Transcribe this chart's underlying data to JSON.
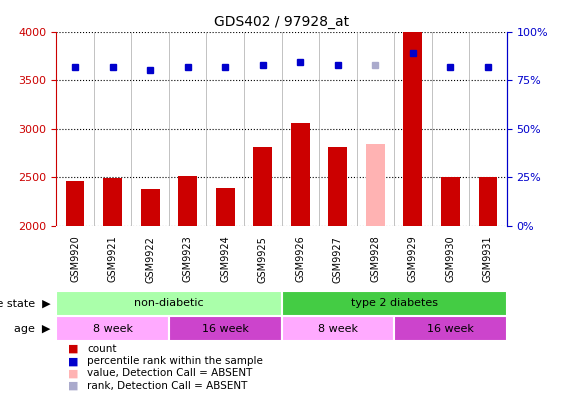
{
  "title": "GDS402 / 97928_at",
  "samples": [
    "GSM9920",
    "GSM9921",
    "GSM9922",
    "GSM9923",
    "GSM9924",
    "GSM9925",
    "GSM9926",
    "GSM9927",
    "GSM9928",
    "GSM9929",
    "GSM9930",
    "GSM9931"
  ],
  "bar_values": [
    2460,
    2490,
    2380,
    2510,
    2390,
    2810,
    3060,
    2810,
    2840,
    4000,
    2500,
    2500
  ],
  "bar_colors": [
    "#cc0000",
    "#cc0000",
    "#cc0000",
    "#cc0000",
    "#cc0000",
    "#cc0000",
    "#cc0000",
    "#cc0000",
    "#ffb3b3",
    "#cc0000",
    "#cc0000",
    "#cc0000"
  ],
  "scatter_values": [
    3640,
    3640,
    3610,
    3640,
    3640,
    3660,
    3690,
    3660,
    3660,
    3780,
    3640,
    3640
  ],
  "scatter_colors": [
    "#0000cc",
    "#0000cc",
    "#0000cc",
    "#0000cc",
    "#0000cc",
    "#0000cc",
    "#0000cc",
    "#0000cc",
    "#aaaacc",
    "#0000cc",
    "#0000cc",
    "#0000cc"
  ],
  "ylim": [
    2000,
    4000
  ],
  "yticks": [
    2000,
    2500,
    3000,
    3500,
    4000
  ],
  "bar_width": 0.5,
  "disease_state_groups": [
    {
      "label": "non-diabetic",
      "start": 0,
      "end": 6,
      "color": "#aaffaa"
    },
    {
      "label": "type 2 diabetes",
      "start": 6,
      "end": 12,
      "color": "#44cc44"
    }
  ],
  "age_groups": [
    {
      "label": "8 week",
      "start": 0,
      "end": 3,
      "color": "#ffaaff"
    },
    {
      "label": "16 week",
      "start": 3,
      "end": 6,
      "color": "#cc44cc"
    },
    {
      "label": "8 week",
      "start": 6,
      "end": 9,
      "color": "#ffaaff"
    },
    {
      "label": "16 week",
      "start": 9,
      "end": 12,
      "color": "#cc44cc"
    }
  ],
  "legend_items": [
    {
      "label": "count",
      "color": "#cc0000"
    },
    {
      "label": "percentile rank within the sample",
      "color": "#0000cc"
    },
    {
      "label": "value, Detection Call = ABSENT",
      "color": "#ffb3b3"
    },
    {
      "label": "rank, Detection Call = ABSENT",
      "color": "#aaaacc"
    }
  ],
  "right_yticks": [
    0,
    25,
    50,
    75,
    100
  ],
  "background_color": "#ffffff",
  "tick_color": "#cc0000",
  "right_tick_color": "#0000cc"
}
